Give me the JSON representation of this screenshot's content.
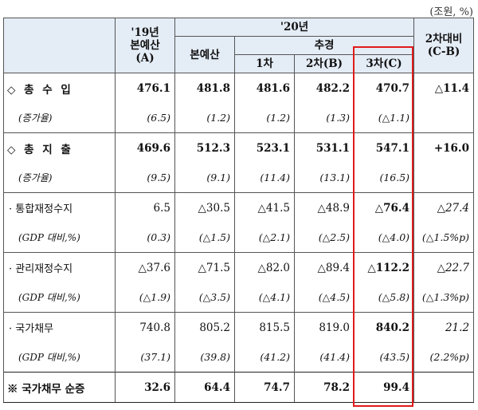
{
  "unit": "(조원, %)",
  "header": {
    "col19_line1": "'19년",
    "col19_line2": "본예산",
    "col19_line3": "(A)",
    "group20": "'20년",
    "budget": "본예산",
    "supp": "추경",
    "supp1": "1차",
    "supp2": "2차(B)",
    "supp3": "3차(C)",
    "diff_line1": "2차대비",
    "diff_line2": "(C-B)"
  },
  "rows": [
    {
      "label": "◇ 총 수 입",
      "values": [
        "476.1",
        "481.8",
        "481.6",
        "482.2",
        "470.7",
        "△11.4"
      ]
    },
    {
      "label": "(증가율)",
      "values": [
        "(6.5)",
        "(1.2)",
        "(1.2)",
        "(1.3)",
        "(△1.1)",
        ""
      ]
    },
    {
      "label": "◇ 총 지 출",
      "values": [
        "469.6",
        "512.3",
        "523.1",
        "531.1",
        "547.1",
        "+16.0"
      ]
    },
    {
      "label": "(증가율)",
      "values": [
        "(9.5)",
        "(9.1)",
        "(11.4)",
        "(13.1)",
        "(16.5)",
        ""
      ]
    },
    {
      "label": "· 통합재정수지",
      "values": [
        "6.5",
        "△30.5",
        "△41.5",
        "△48.9",
        "△76.4",
        "△27.4"
      ]
    },
    {
      "label": "(GDP 대비,%)",
      "values": [
        "(0.3)",
        "(△1.5)",
        "(△2.1)",
        "(△2.5)",
        "(△4.0)",
        "(△1.5%p)"
      ]
    },
    {
      "label": "· 관리재정수지",
      "values": [
        "△37.6",
        "△71.5",
        "△82.0",
        "△89.4",
        "△112.2",
        "△22.7"
      ]
    },
    {
      "label": "(GDP 대비,%)",
      "values": [
        "(△1.9)",
        "(△3.5)",
        "(△4.1)",
        "(△4.5)",
        "(△5.8)",
        "(△1.3%p)"
      ]
    },
    {
      "label": "· 국가채무",
      "values": [
        "740.8",
        "805.2",
        "815.5",
        "819.0",
        "840.2",
        "21.2"
      ]
    },
    {
      "label": "(GDP 대비,%)",
      "values": [
        "(37.1)",
        "(39.8)",
        "(41.2)",
        "(41.4)",
        "(43.5)",
        "(2.2%p)"
      ]
    },
    {
      "label": "※ 국가채무 순증",
      "values": [
        "32.6",
        "64.4",
        "74.7",
        "78.2",
        "99.4",
        ""
      ]
    }
  ],
  "colors": {
    "header_bg": "#e4ecf6",
    "highlight_border": "#e01b1b"
  }
}
